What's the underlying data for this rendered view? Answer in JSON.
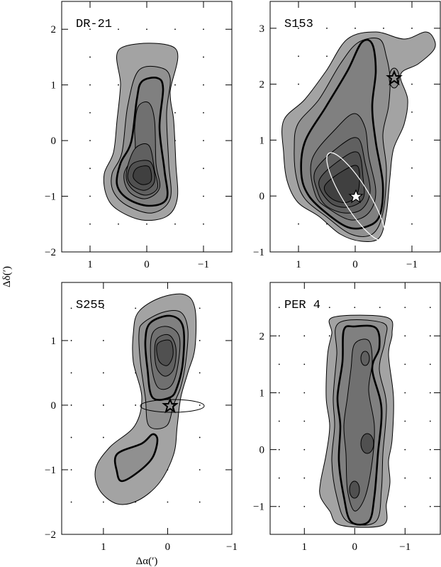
{
  "chart_data": [
    {
      "type": "contour",
      "title": "DR-21",
      "xlim": [
        1.5,
        -1.5
      ],
      "ylim": [
        -2,
        2.5
      ],
      "xticks": [
        1,
        0,
        {
          "value": -1,
          "label": "−1"
        }
      ],
      "yticks": [
        {
          "value": -2,
          "label": "−2"
        },
        {
          "value": -1,
          "label": "−1"
        },
        0,
        1,
        2
      ]
    },
    {
      "type": "contour",
      "title": "S153",
      "xlim": [
        1.5,
        -1.5
      ],
      "ylim": [
        -1,
        3.48
      ],
      "xticks": [
        1,
        0,
        {
          "value": -1,
          "label": "−1"
        }
      ],
      "yticks": [
        {
          "value": -1,
          "label": "−1"
        },
        0,
        1,
        2,
        3
      ]
    },
    {
      "type": "contour",
      "title": "S255",
      "xlim": [
        1.65,
        -1
      ],
      "ylim": [
        -2,
        1.9
      ],
      "xticks": [
        1,
        0,
        {
          "value": -1,
          "label": "−1"
        }
      ],
      "yticks": [
        {
          "value": -2,
          "label": "−2"
        },
        {
          "value": -1,
          "label": "−1"
        },
        0,
        1
      ],
      "x_label": "Δα(′)",
      "y_label": "Δδ(′)"
    },
    {
      "type": "contour",
      "title": "PER 4",
      "xlim": [
        1.68,
        -1.7
      ],
      "ylim": [
        -1.49,
        2.94
      ],
      "xticks": [
        1,
        0,
        {
          "value": -1,
          "label": "−1"
        }
      ],
      "yticks": [
        {
          "value": -1,
          "label": "−1"
        },
        0,
        1,
        2
      ]
    }
  ]
}
